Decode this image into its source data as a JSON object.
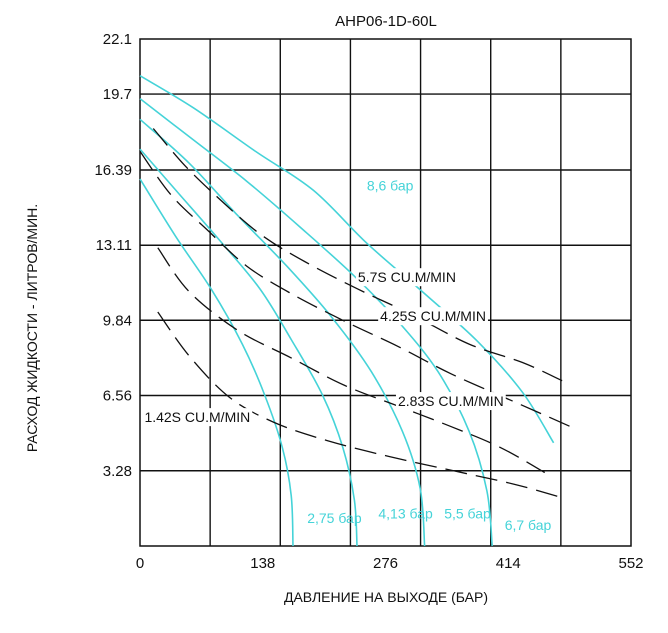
{
  "chart_data": {
    "type": "line",
    "title": "AHP06-1D-60L",
    "xlabel": "ДАВЛЕНИЕ НА ВЫХОДЕ (БАР)",
    "ylabel": "РАСХОД ЖИДКОСТИ - ЛИТРОВ/МИН.",
    "xlim": [
      0,
      552
    ],
    "ylim": [
      0,
      22.1
    ],
    "x_ticks": [
      "0",
      "138",
      "276",
      "414",
      "552"
    ],
    "y_ticks": [
      "3.28",
      "6.56",
      "9.84",
      "13.11",
      "16.39",
      "19.7",
      "22.1"
    ],
    "y_tick_values": [
      3.28,
      6.56,
      9.84,
      13.11,
      16.39,
      19.7,
      22.1
    ],
    "grid": true,
    "colors": {
      "pressure": "#45d3d8",
      "air": "#111111"
    },
    "pressure_series": [
      {
        "name": "2,75 бар",
        "label": "2,75 бар",
        "points": [
          [
            0,
            16.0
          ],
          [
            40,
            13.5
          ],
          [
            80,
            11.2
          ],
          [
            115,
            8.8
          ],
          [
            140,
            6.6
          ],
          [
            160,
            4.3
          ],
          [
            170,
            2.2
          ],
          [
            172,
            0.0
          ]
        ],
        "label_at": [
          188,
          1.0
        ]
      },
      {
        "name": "4,13 бар",
        "label": "4,13 бар",
        "points": [
          [
            0,
            17.3
          ],
          [
            45,
            15.3
          ],
          [
            90,
            13.3
          ],
          [
            135,
            11.2
          ],
          [
            170,
            9.0
          ],
          [
            205,
            6.6
          ],
          [
            228,
            4.3
          ],
          [
            241,
            2.0
          ],
          [
            244,
            0.0
          ]
        ],
        "label_at": [
          268,
          1.2
        ]
      },
      {
        "name": "5,5 бар",
        "label": "5,5 бар",
        "points": [
          [
            0,
            18.6
          ],
          [
            55,
            16.7
          ],
          [
            110,
            14.4
          ],
          [
            165,
            12.2
          ],
          [
            215,
            10.0
          ],
          [
            260,
            7.6
          ],
          [
            295,
            5.0
          ],
          [
            315,
            2.5
          ],
          [
            320,
            0.0
          ]
        ],
        "label_at": [
          342,
          1.2
        ]
      },
      {
        "name": "6,7 бар",
        "label": "6,7 бар",
        "points": [
          [
            0,
            19.5
          ],
          [
            60,
            17.7
          ],
          [
            120,
            15.9
          ],
          [
            180,
            13.9
          ],
          [
            240,
            11.8
          ],
          [
            290,
            9.8
          ],
          [
            335,
            7.6
          ],
          [
            370,
            5.0
          ],
          [
            390,
            2.4
          ],
          [
            396,
            0.0
          ]
        ],
        "label_at": [
          410,
          0.7
        ]
      },
      {
        "name": "8,6 бар",
        "label": "8,6 бар",
        "points": [
          [
            0,
            20.5
          ],
          [
            60,
            19.1
          ],
          [
            130,
            17.2
          ],
          [
            195,
            15.5
          ],
          [
            255,
            13.2
          ],
          [
            320,
            11.0
          ],
          [
            380,
            8.9
          ],
          [
            430,
            6.7
          ],
          [
            465,
            4.5
          ]
        ],
        "label_at": [
          255,
          15.5
        ]
      }
    ],
    "air_series": [
      {
        "name": "1.42S CU.M/MIN",
        "label": "1.42S CU.M/MIN",
        "points": [
          [
            20,
            10.2
          ],
          [
            55,
            8.3
          ],
          [
            100,
            6.5
          ],
          [
            150,
            5.4
          ],
          [
            210,
            4.6
          ],
          [
            280,
            3.9
          ],
          [
            350,
            3.3
          ],
          [
            420,
            2.7
          ],
          [
            475,
            2.1
          ]
        ],
        "label_at": [
          5,
          5.4
        ]
      },
      {
        "name": "2.83S CU.M/MIN",
        "label": "2.83S CU.M/MIN",
        "points": [
          [
            20,
            13.0
          ],
          [
            55,
            11.1
          ],
          [
            110,
            9.4
          ],
          [
            170,
            8.2
          ],
          [
            230,
            7.0
          ],
          [
            290,
            6.1
          ],
          [
            350,
            5.2
          ],
          [
            405,
            4.3
          ],
          [
            455,
            3.2
          ]
        ],
        "label_at": [
          290,
          6.1
        ]
      },
      {
        "name": "4.25S CU.M/MIN",
        "label": "4.25S CU.M/MIN",
        "points": [
          [
            0,
            17.2
          ],
          [
            35,
            15.3
          ],
          [
            75,
            13.8
          ],
          [
            120,
            12.2
          ],
          [
            170,
            11.0
          ],
          [
            230,
            9.8
          ],
          [
            290,
            8.7
          ],
          [
            350,
            7.5
          ],
          [
            420,
            6.3
          ],
          [
            490,
            5.1
          ]
        ],
        "label_at": [
          270,
          9.8
        ]
      },
      {
        "name": "5.7S CU.M/MIN",
        "label": "5.7S CU.M/MIN",
        "points": [
          [
            15,
            18.2
          ],
          [
            50,
            16.6
          ],
          [
            90,
            15.1
          ],
          [
            135,
            13.6
          ],
          [
            185,
            12.4
          ],
          [
            245,
            11.2
          ],
          [
            305,
            10.1
          ],
          [
            370,
            8.8
          ],
          [
            430,
            8.0
          ],
          [
            475,
            7.2
          ]
        ],
        "label_at": [
          245,
          11.5
        ]
      }
    ]
  }
}
